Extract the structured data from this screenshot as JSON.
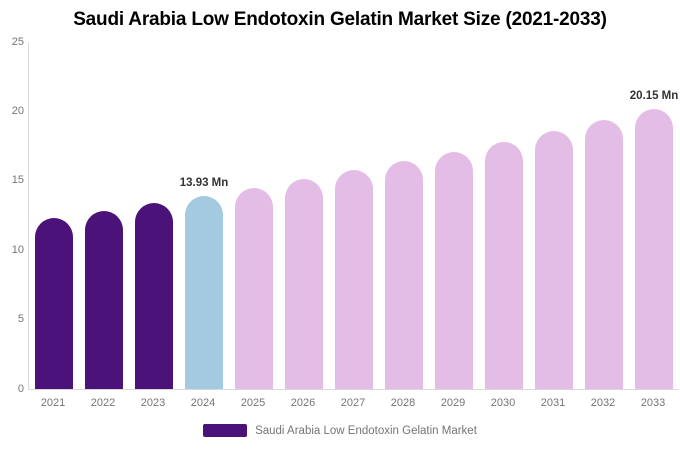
{
  "title": "Saudi Arabia Low Endotoxin Gelatin Market Size (2021-2033)",
  "chart_data": {
    "type": "bar",
    "title": "Saudi Arabia Low Endotoxin Gelatin Market Size (2021-2033)",
    "categories": [
      "2021",
      "2022",
      "2023",
      "2024",
      "2025",
      "2026",
      "2027",
      "2028",
      "2029",
      "2030",
      "2031",
      "2032",
      "2033"
    ],
    "values": [
      12.35,
      12.85,
      13.37,
      13.93,
      14.51,
      15.12,
      15.76,
      16.42,
      17.11,
      17.83,
      18.58,
      19.36,
      20.15
    ],
    "unit": "Mn",
    "xlabel": "",
    "ylabel": "",
    "ylim": [
      0,
      25
    ],
    "yticks": [
      0,
      5,
      10,
      15,
      20,
      25
    ],
    "grid": false,
    "legend_position": "bottom",
    "bar_colors": [
      "#4B1379",
      "#4B1379",
      "#4B1379",
      "#A4CADF",
      "#E4BDE7",
      "#E4BDE7",
      "#E4BDE7",
      "#E4BDE7",
      "#E4BDE7",
      "#E4BDE7",
      "#E4BDE7",
      "#E4BDE7",
      "#E4BDE7"
    ],
    "annotations": [
      {
        "category": "2024",
        "text": "13.93 Mn"
      },
      {
        "category": "2033",
        "text": "20.15 Mn"
      }
    ],
    "legend": [
      {
        "label": "Saudi Arabia Low Endotoxin Gelatin Market",
        "color": "#4B1379"
      }
    ]
  },
  "colors": {
    "background": "#FFFFFF",
    "axis_line": "#D9D9D9",
    "axis_label": "#757575",
    "title_text": "#000000",
    "data_label": "#333333",
    "bar_historical": "#4B1379",
    "bar_base_year": "#A4CADF",
    "bar_forecast": "#E4BDE7"
  }
}
